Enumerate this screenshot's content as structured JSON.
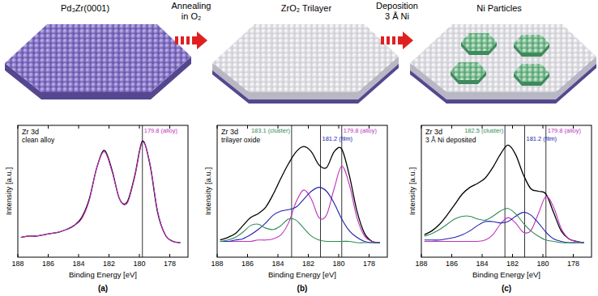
{
  "diagram": {
    "stages": [
      {
        "label": "Pd₃Zr(0001)"
      },
      {
        "label": "ZrO₂ Trilayer"
      },
      {
        "label": "Ni Particles"
      }
    ],
    "steps": [
      {
        "lines": [
          "Annealing",
          "in O₂"
        ]
      },
      {
        "lines": [
          "Deposition",
          "3 Å Ni"
        ]
      }
    ]
  },
  "chart_data": [
    {
      "type": "line",
      "title": "Zr 3d",
      "subtitle": "clean alloy",
      "x_label": "Binding Energy [eV]",
      "y_label": "Intensity [a.u.]",
      "caption": "(a)",
      "xlim": [
        188,
        176.8
      ],
      "xticks": [
        188,
        186,
        184,
        182,
        180,
        178
      ],
      "ylim": [
        0,
        1
      ],
      "tick_labels": "x",
      "x": [
        187.8,
        187.3,
        186.8,
        186.3,
        185.8,
        185.3,
        184.8,
        184.3,
        183.8,
        183.3,
        182.8,
        182.3,
        181.8,
        181.3,
        180.8,
        180.3,
        179.8,
        179.3,
        178.8,
        178.3,
        177.8,
        177.3
      ],
      "series": [
        {
          "color": "#000000",
          "values": [
            0.15,
            0.16,
            0.16,
            0.17,
            0.18,
            0.19,
            0.21,
            0.24,
            0.3,
            0.44,
            0.68,
            0.81,
            0.66,
            0.44,
            0.42,
            0.62,
            0.88,
            0.7,
            0.34,
            0.17,
            0.12,
            0.11
          ]
        },
        {
          "color": "#c030c0",
          "values": [
            0.15,
            0.16,
            0.16,
            0.17,
            0.18,
            0.19,
            0.21,
            0.24,
            0.29,
            0.43,
            0.68,
            0.8,
            0.65,
            0.44,
            0.41,
            0.61,
            0.87,
            0.71,
            0.35,
            0.17,
            0.12,
            0.11
          ]
        }
      ],
      "annotations": [
        {
          "x": 179.8,
          "text": "179.8 (alloy)",
          "color": "#c030c0"
        }
      ]
    },
    {
      "type": "line",
      "title": "Zr 3d",
      "subtitle": "trilayer oxide",
      "x_label": "Binding Energy [eV]",
      "y_label": "Intensity [a.u.]",
      "caption": "(b)",
      "xlim": [
        188,
        176.8
      ],
      "xticks": [
        188,
        186,
        184,
        182,
        180,
        178
      ],
      "ylim": [
        0,
        1
      ],
      "tick_labels": "x",
      "x": [
        187.8,
        187.3,
        186.8,
        186.3,
        185.8,
        185.3,
        184.8,
        184.3,
        183.8,
        183.3,
        182.8,
        182.3,
        181.8,
        181.3,
        180.8,
        180.3,
        179.8,
        179.3,
        178.8,
        178.3,
        177.8,
        177.3
      ],
      "series": [
        {
          "color": "#000000",
          "values": [
            0.13,
            0.15,
            0.18,
            0.24,
            0.3,
            0.33,
            0.38,
            0.48,
            0.6,
            0.71,
            0.8,
            0.84,
            0.8,
            0.7,
            0.68,
            0.8,
            0.82,
            0.62,
            0.35,
            0.18,
            0.12,
            0.11
          ]
        },
        {
          "color": "#c030c0",
          "values": [
            0.12,
            0.12,
            0.12,
            0.12,
            0.12,
            0.13,
            0.13,
            0.14,
            0.17,
            0.26,
            0.42,
            0.51,
            0.44,
            0.3,
            0.32,
            0.52,
            0.69,
            0.55,
            0.3,
            0.16,
            0.12,
            0.11
          ]
        },
        {
          "color": "#2020b0",
          "values": [
            0.12,
            0.12,
            0.13,
            0.14,
            0.17,
            0.21,
            0.26,
            0.32,
            0.35,
            0.36,
            0.38,
            0.44,
            0.5,
            0.53,
            0.5,
            0.41,
            0.29,
            0.2,
            0.15,
            0.12,
            0.11,
            0.11
          ]
        },
        {
          "color": "#2e8b57",
          "values": [
            0.12,
            0.13,
            0.15,
            0.19,
            0.24,
            0.25,
            0.22,
            0.21,
            0.24,
            0.29,
            0.28,
            0.22,
            0.16,
            0.13,
            0.12,
            0.12,
            0.12,
            0.12,
            0.11,
            0.11,
            0.11,
            0.11
          ]
        }
      ],
      "annotations": [
        {
          "x": 183.1,
          "text": "183.1 (cluster)",
          "color": "#2e8b57"
        },
        {
          "x": 181.2,
          "text": "181.2 (film)",
          "color": "#2020b0"
        },
        {
          "x": 179.8,
          "text": "179.8 (alloy)",
          "color": "#c030c0"
        }
      ]
    },
    {
      "type": "line",
      "title": "Zr 3d",
      "subtitle": "3 Å Ni deposited",
      "x_label": "Binding Energy [eV]",
      "y_label": "Intensity [a.u.]",
      "caption": "(c)",
      "xlim": [
        188,
        176.8
      ],
      "xticks": [
        188,
        186,
        184,
        182,
        180,
        178
      ],
      "ylim": [
        0,
        1
      ],
      "tick_labels": "x",
      "x": [
        187.8,
        187.3,
        186.8,
        186.3,
        185.8,
        185.3,
        184.8,
        184.3,
        183.8,
        183.3,
        182.8,
        182.3,
        181.8,
        181.3,
        180.8,
        180.3,
        179.8,
        179.3,
        178.8,
        178.3,
        177.8,
        177.3
      ],
      "series": [
        {
          "color": "#000000",
          "values": [
            0.17,
            0.2,
            0.25,
            0.32,
            0.4,
            0.48,
            0.53,
            0.56,
            0.6,
            0.68,
            0.78,
            0.85,
            0.78,
            0.63,
            0.52,
            0.5,
            0.48,
            0.34,
            0.2,
            0.14,
            0.12,
            0.11
          ]
        },
        {
          "color": "#c030c0",
          "values": [
            0.12,
            0.12,
            0.12,
            0.12,
            0.12,
            0.12,
            0.12,
            0.12,
            0.13,
            0.17,
            0.25,
            0.3,
            0.26,
            0.19,
            0.2,
            0.33,
            0.46,
            0.38,
            0.22,
            0.14,
            0.12,
            0.11
          ]
        },
        {
          "color": "#2020b0",
          "values": [
            0.13,
            0.13,
            0.13,
            0.14,
            0.15,
            0.17,
            0.2,
            0.24,
            0.27,
            0.27,
            0.26,
            0.27,
            0.31,
            0.34,
            0.32,
            0.26,
            0.19,
            0.14,
            0.12,
            0.11,
            0.11,
            0.11
          ]
        },
        {
          "color": "#2e8b57",
          "values": [
            0.16,
            0.18,
            0.21,
            0.25,
            0.29,
            0.31,
            0.31,
            0.29,
            0.28,
            0.31,
            0.35,
            0.37,
            0.33,
            0.26,
            0.2,
            0.16,
            0.13,
            0.12,
            0.11,
            0.11,
            0.11,
            0.11
          ]
        }
      ],
      "annotations": [
        {
          "x": 182.5,
          "text": "182.5 (cluster)",
          "color": "#2e8b57"
        },
        {
          "x": 181.2,
          "text": "181.2 (film)",
          "color": "#2020b0"
        },
        {
          "x": 179.8,
          "text": "179.8 (alloy)",
          "color": "#c030c0"
        }
      ]
    }
  ]
}
